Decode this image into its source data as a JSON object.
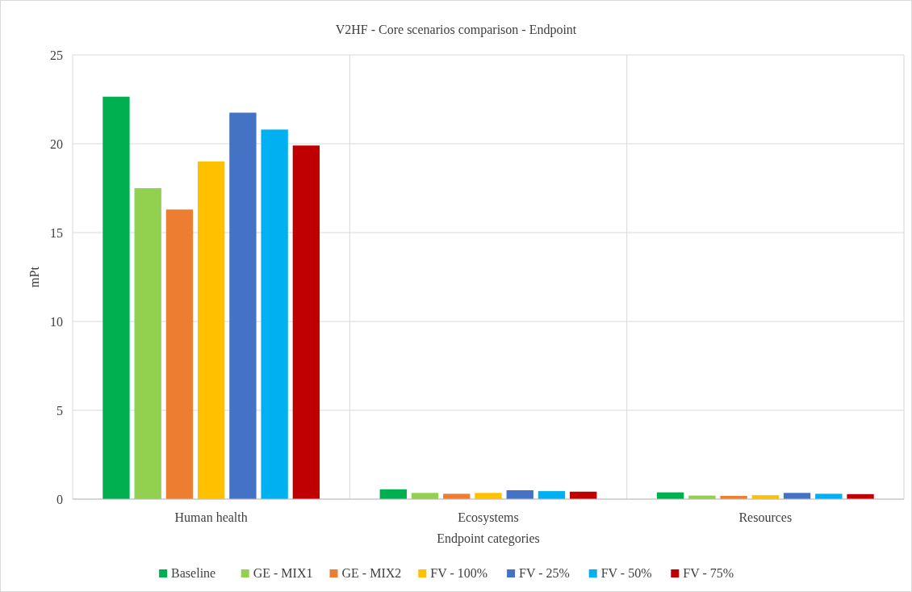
{
  "chart_data": {
    "type": "bar",
    "title": "V2HF - Core scenarios comparison - Endpoint",
    "xlabel": "Endpoint categories",
    "ylabel": "mPt",
    "categories": [
      "Human health",
      "Ecosystems",
      "Resources"
    ],
    "series": [
      {
        "name": "Baseline",
        "color": "#00b050",
        "values": [
          22.65,
          0.55,
          0.38
        ]
      },
      {
        "name": "GE - MIX1",
        "color": "#92d050",
        "values": [
          17.5,
          0.35,
          0.2
        ]
      },
      {
        "name": "GE - MIX2",
        "color": "#ed7d31",
        "values": [
          16.3,
          0.3,
          0.18
        ]
      },
      {
        "name": "FV - 100%",
        "color": "#ffc000",
        "values": [
          19.0,
          0.35,
          0.22
        ]
      },
      {
        "name": "FV - 25%",
        "color": "#4472c4",
        "values": [
          21.75,
          0.5,
          0.35
        ]
      },
      {
        "name": "FV - 50%",
        "color": "#00b0f0",
        "values": [
          20.8,
          0.45,
          0.3
        ]
      },
      {
        "name": "FV - 75%",
        "color": "#c00000",
        "values": [
          19.9,
          0.42,
          0.28
        ]
      }
    ],
    "ylim": [
      0,
      25
    ],
    "yticks": [
      0,
      5,
      10,
      15,
      20,
      25
    ],
    "grid": true,
    "legend": "bottom"
  }
}
